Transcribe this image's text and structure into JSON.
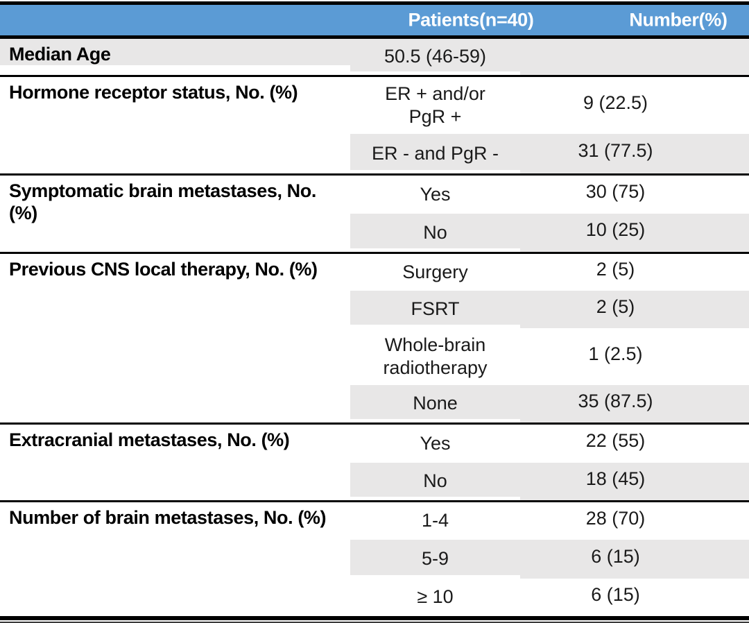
{
  "table": {
    "header": {
      "patients": "Patients(n=40)",
      "number": "Number(%)"
    },
    "sections": [
      {
        "label": "Median Age",
        "rows": [
          {
            "patients": "50.5 (46-59)",
            "number": ""
          }
        ]
      },
      {
        "label": "Hormone receptor status, No. (%)",
        "rows": [
          {
            "patients": "ER + and/or\nPgR +",
            "number": "9 (22.5)"
          },
          {
            "patients": "ER - and PgR -",
            "number": "31 (77.5)"
          }
        ]
      },
      {
        "label": "Symptomatic brain metastases, No. (%)",
        "rows": [
          {
            "patients": "Yes",
            "number": "30 (75)"
          },
          {
            "patients": "No",
            "number": "10 (25)"
          }
        ]
      },
      {
        "label": "Previous CNS local therapy, No. (%)",
        "rows": [
          {
            "patients": "Surgery",
            "number": "2 (5)"
          },
          {
            "patients": "FSRT",
            "number": "2 (5)"
          },
          {
            "patients": "Whole-brain\nradiotherapy",
            "number": "1 (2.5)"
          },
          {
            "patients": "None",
            "number": "35 (87.5)"
          }
        ]
      },
      {
        "label": "Extracranial metastases, No. (%)",
        "rows": [
          {
            "patients": "Yes",
            "number": "22 (55)"
          },
          {
            "patients": "No",
            "number": "18 (45)"
          }
        ]
      },
      {
        "label": "Number of brain metastases, No. (%)",
        "rows": [
          {
            "patients": "1-4",
            "number": "28 (70)"
          },
          {
            "patients": "5-9",
            "number": "6 (15)"
          },
          {
            "patients": "≥ 10",
            "number": "6 (15)"
          }
        ]
      }
    ]
  },
  "colors": {
    "header_bg": "#5B9BD5",
    "header_text": "#FFFFFF",
    "shade": "#E8E7E7",
    "border": "#000000"
  },
  "chart_data": {
    "type": "table",
    "columns": [
      "",
      "Patients(n=40)",
      "Number(%)"
    ],
    "rows": [
      [
        "Median Age",
        "50.5 (46-59)",
        ""
      ],
      [
        "Hormone receptor status, No. (%)",
        "ER + and/or PgR +",
        "9 (22.5)"
      ],
      [
        "",
        "ER - and PgR -",
        "31 (77.5)"
      ],
      [
        "Symptomatic brain metastases, No. (%)",
        "Yes",
        "30 (75)"
      ],
      [
        "",
        "No",
        "10 (25)"
      ],
      [
        "Previous CNS local therapy, No. (%)",
        "Surgery",
        "2 (5)"
      ],
      [
        "",
        "FSRT",
        "2 (5)"
      ],
      [
        "",
        "Whole-brain radiotherapy",
        "1 (2.5)"
      ],
      [
        "",
        "None",
        "35 (87.5)"
      ],
      [
        "Extracranial metastases, No. (%)",
        "Yes",
        "22 (55)"
      ],
      [
        "",
        "No",
        "18 (45)"
      ],
      [
        "Number of brain metastases, No. (%)",
        "1-4",
        "28 (70)"
      ],
      [
        "",
        "5-9",
        "6 (15)"
      ],
      [
        "",
        "≥ 10",
        "6 (15)"
      ]
    ]
  }
}
